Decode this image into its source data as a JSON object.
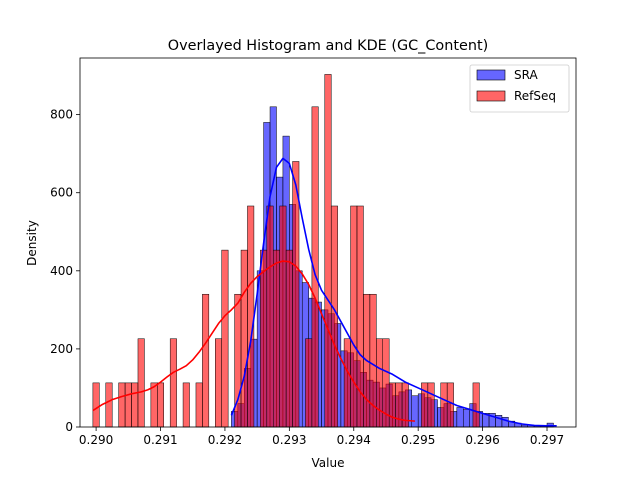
{
  "chart_data": {
    "type": "histogram",
    "title": "Overlayed Histogram and KDE (GC_Content)",
    "xlabel": "Value",
    "ylabel": "Density",
    "xlim": [
      0.28975,
      0.29745
    ],
    "ylim": [
      0,
      945
    ],
    "xticks": [
      0.29,
      0.291,
      0.292,
      0.293,
      0.294,
      0.295,
      0.296,
      0.297
    ],
    "xtick_labels": [
      "0.290",
      "0.291",
      "0.292",
      "0.293",
      "0.294",
      "0.295",
      "0.296",
      "0.297"
    ],
    "yticks": [
      0,
      200,
      400,
      600,
      800
    ],
    "ytick_labels": [
      "0",
      "200",
      "400",
      "600",
      "800"
    ],
    "grid": false,
    "legend": "top-right",
    "series": [
      {
        "name": "SRA",
        "color": "#0000ff",
        "bar_alpha": 0.6,
        "bin_start": 0.2921,
        "bin_width": 0.0001,
        "values": [
          40,
          60,
          150,
          225,
          400,
          780,
          820,
          640,
          745,
          570,
          400,
          370,
          330,
          320,
          300,
          290,
          265,
          195,
          190,
          170,
          140,
          120,
          115,
          100,
          110,
          80,
          90,
          95,
          80,
          85,
          75,
          70,
          50,
          60,
          40,
          50,
          45,
          60,
          40,
          35,
          35,
          30,
          25,
          15,
          10,
          5,
          5,
          3,
          2,
          10
        ]
      },
      {
        "name": "RefSeq",
        "color": "#ff0000",
        "bar_alpha": 0.6,
        "bin_start": 0.28995,
        "bin_width": 0.0001,
        "values": [
          113,
          0,
          113,
          0,
          113,
          113,
          113,
          226,
          0,
          113,
          113,
          0,
          226,
          0,
          113,
          0,
          113,
          340,
          0,
          226,
          453,
          0,
          340,
          453,
          566,
          0,
          453,
          566,
          453,
          566,
          453,
          680,
          0,
          226,
          820,
          0,
          903,
          566,
          0,
          226,
          566,
          566,
          340,
          340,
          226,
          226,
          113,
          113,
          113,
          0,
          0,
          113,
          113,
          0,
          113,
          113,
          0,
          0,
          0,
          113
        ]
      }
    ],
    "kde": [
      {
        "name": "SRA",
        "color": "#0000ff",
        "x": [
          0.2921,
          0.2922,
          0.2923,
          0.2924,
          0.2925,
          0.2926,
          0.2927,
          0.2928,
          0.2929,
          0.293,
          0.2931,
          0.2932,
          0.2933,
          0.2934,
          0.2935,
          0.2936,
          0.2937,
          0.2938,
          0.2939,
          0.294,
          0.2941,
          0.2942,
          0.2944,
          0.2946,
          0.2948,
          0.295,
          0.2952,
          0.2954,
          0.2956,
          0.2958,
          0.296,
          0.2962,
          0.2964,
          0.2966,
          0.2968,
          0.297,
          0.29715
        ],
        "y": [
          30,
          70,
          130,
          220,
          340,
          470,
          590,
          665,
          688,
          675,
          620,
          535,
          455,
          390,
          350,
          325,
          300,
          270,
          240,
          210,
          185,
          170,
          150,
          135,
          115,
          100,
          85,
          70,
          55,
          45,
          35,
          25,
          15,
          8,
          4,
          3,
          3
        ]
      },
      {
        "name": "RefSeq",
        "color": "#ff0000",
        "x": [
          0.28995,
          0.2901,
          0.29025,
          0.2904,
          0.29055,
          0.2907,
          0.2908,
          0.2909,
          0.291,
          0.2911,
          0.2912,
          0.2913,
          0.2914,
          0.2915,
          0.2916,
          0.2917,
          0.2918,
          0.2919,
          0.292,
          0.2921,
          0.2922,
          0.2923,
          0.2924,
          0.2925,
          0.2926,
          0.2927,
          0.2928,
          0.2929,
          0.293,
          0.2931,
          0.2932,
          0.2933,
          0.2934,
          0.2935,
          0.2936,
          0.2937,
          0.2938,
          0.2939,
          0.294,
          0.2941,
          0.2942,
          0.2943,
          0.2944,
          0.2945,
          0.2946,
          0.2947,
          0.2948,
          0.29495
        ],
        "y": [
          42,
          58,
          70,
          78,
          85,
          90,
          95,
          103,
          115,
          128,
          140,
          148,
          157,
          172,
          192,
          215,
          240,
          265,
          285,
          300,
          317,
          345,
          368,
          385,
          398,
          410,
          420,
          425,
          423,
          412,
          392,
          365,
          330,
          290,
          250,
          210,
          175,
          143,
          115,
          90,
          70,
          55,
          43,
          33,
          25,
          20,
          17,
          15
        ]
      }
    ]
  }
}
